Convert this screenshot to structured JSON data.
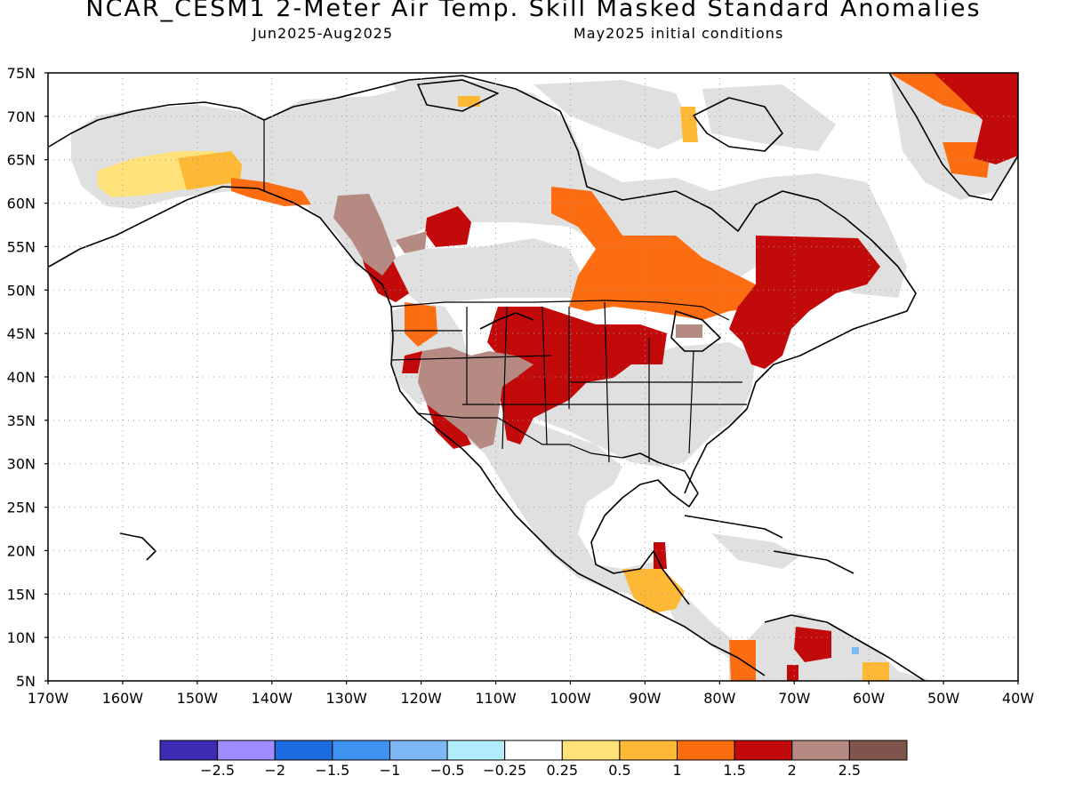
{
  "header": {
    "title": "NCAR_CESM1 2-Meter Air Temp. Skill Masked Standard Anomalies",
    "period": "Jun2025-Aug2025",
    "init": "May2025 initial conditions"
  },
  "axes": {
    "lat_labels": [
      "75N",
      "70N",
      "65N",
      "60N",
      "55N",
      "50N",
      "45N",
      "40N",
      "35N",
      "30N",
      "25N",
      "20N",
      "15N",
      "10N",
      "5N"
    ],
    "lon_labels": [
      "170W",
      "160W",
      "150W",
      "140W",
      "130W",
      "120W",
      "110W",
      "100W",
      "90W",
      "80W",
      "70W",
      "60W",
      "50W",
      "40W"
    ]
  },
  "legend": {
    "colors": [
      "#3d2bb5",
      "#a08cff",
      "#1d6be0",
      "#3e93f0",
      "#7cb9f5",
      "#b0ecfa",
      "#ffffff",
      "#ffe27a",
      "#fdb935",
      "#fc6c10",
      "#c30a0a",
      "#b58a82",
      "#7e544c"
    ],
    "labels": [
      "−2.5",
      "−2",
      "−1.5",
      "−1",
      "−0.5",
      "−0.25",
      "0.25",
      "0.5",
      "1",
      "1.5",
      "2",
      "2.5"
    ]
  },
  "colors": {
    "no_skill_gray": "#e0e0e0",
    "coastline": "#000000"
  }
}
